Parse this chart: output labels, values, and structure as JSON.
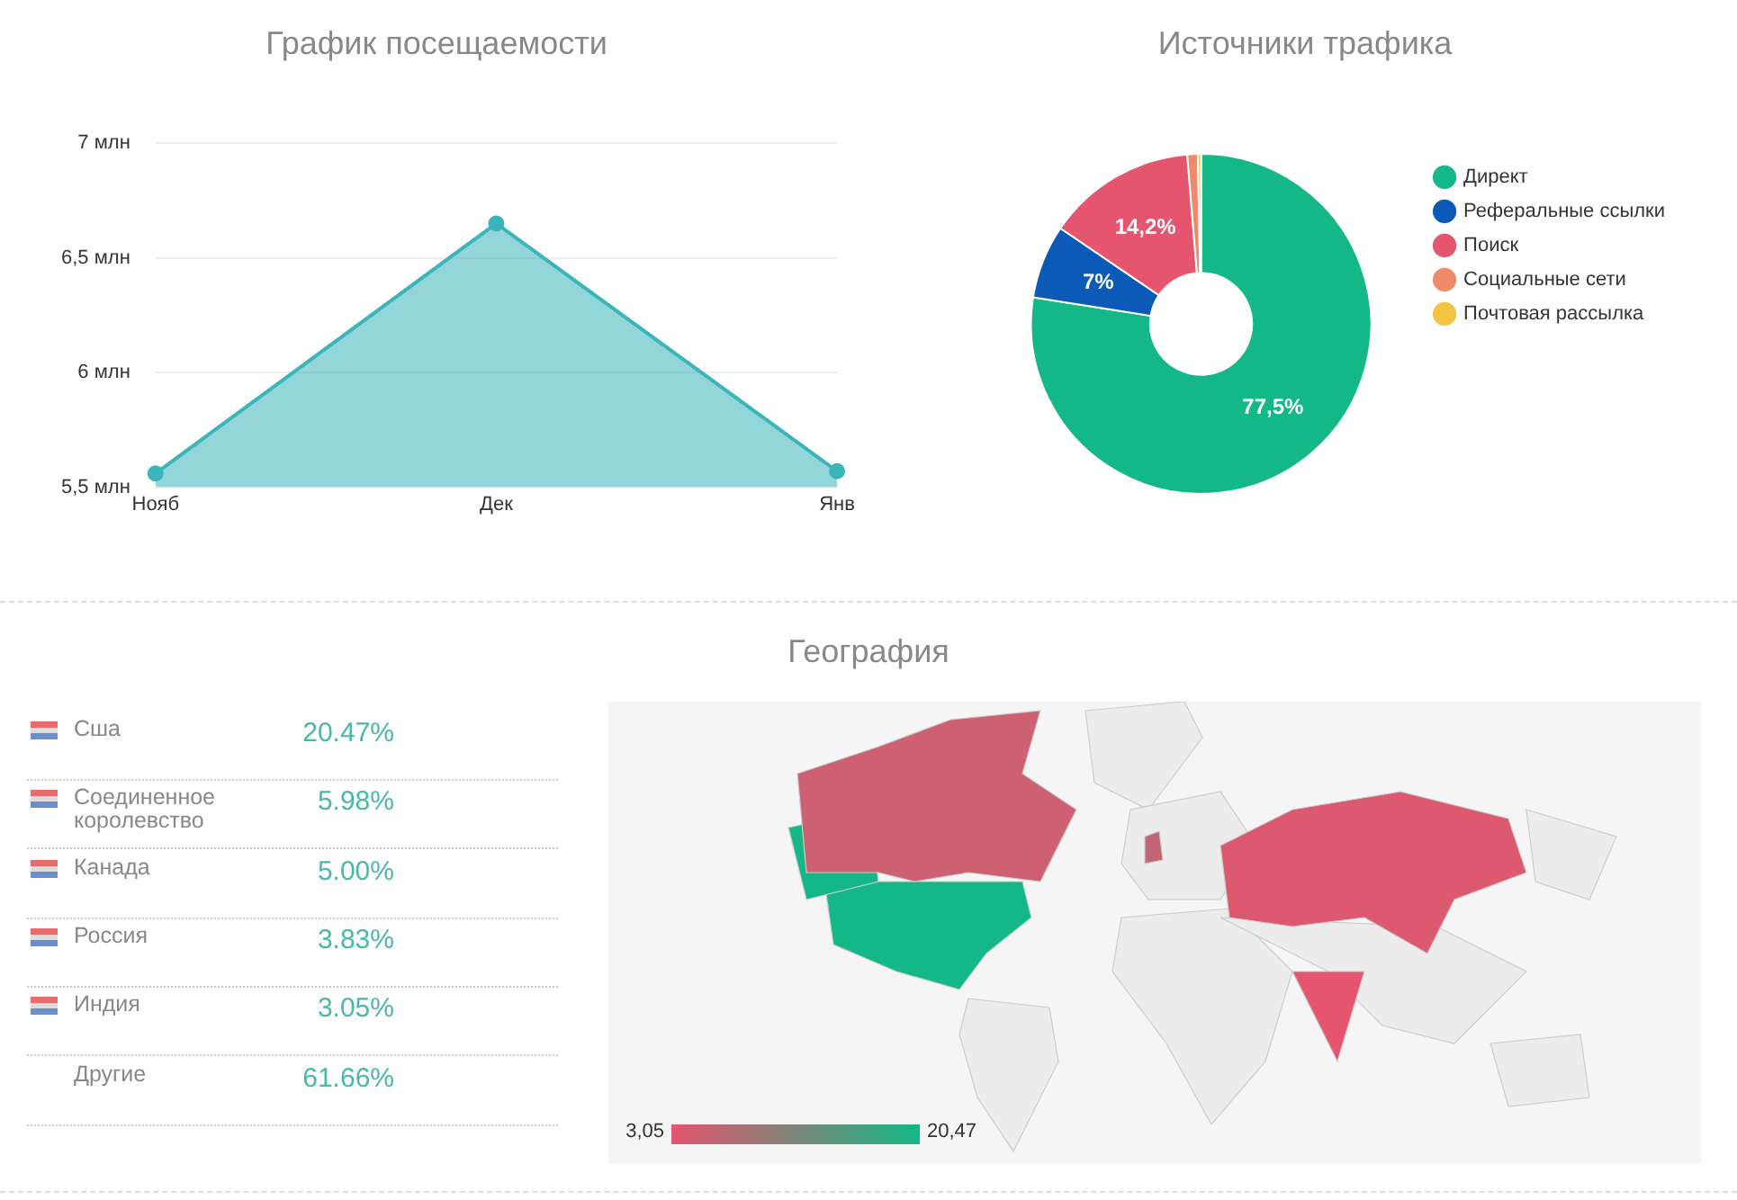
{
  "chart_data": [
    {
      "type": "area",
      "title": "График посещаемости",
      "categories": [
        "Нояб",
        "Дек",
        "Янв"
      ],
      "series": [
        {
          "color": "#3ab5ba",
          "values": [
            5.56,
            6.65,
            5.57
          ]
        }
      ],
      "ylim": [
        5.5,
        7
      ],
      "yticks": [
        {
          "value": 5.5,
          "label": "5,5 млн"
        },
        {
          "value": 6,
          "label": "6 млн"
        },
        {
          "value": 6.5,
          "label": "6,5 млн"
        },
        {
          "value": 7,
          "label": "7 млн"
        }
      ],
      "grid": "y",
      "legend": false,
      "marker": "circle"
    },
    {
      "type": "donut",
      "title": "Источники трафика",
      "categories": [
        "Директ",
        "Реферальные ссылки",
        "Поиск",
        "Социальные сети",
        "Почтовая рассылка"
      ],
      "values": [
        77.5,
        7,
        14.2,
        1,
        0.3
      ],
      "colors": [
        "#13b886",
        "#0b5ab8",
        "#e5556e",
        "#f08a6a",
        "#f5c342"
      ],
      "value_labels": [
        "77,5%",
        "7%",
        "14,2%",
        null,
        null
      ],
      "legend": "right"
    },
    {
      "type": "other",
      "title": "География",
      "categories": [
        "Сша",
        "Соединенное королевство",
        "Канада",
        "Россия",
        "Индия",
        "Другие"
      ],
      "values": [
        20.47,
        5.98,
        5.0,
        3.83,
        3.05,
        61.66
      ],
      "value_labels": [
        "20.47%",
        "5.98%",
        "5.00%",
        "3.83%",
        "3.05%",
        "61.66%"
      ],
      "annotations": [
        "3,05",
        "20,47"
      ]
    }
  ]
}
